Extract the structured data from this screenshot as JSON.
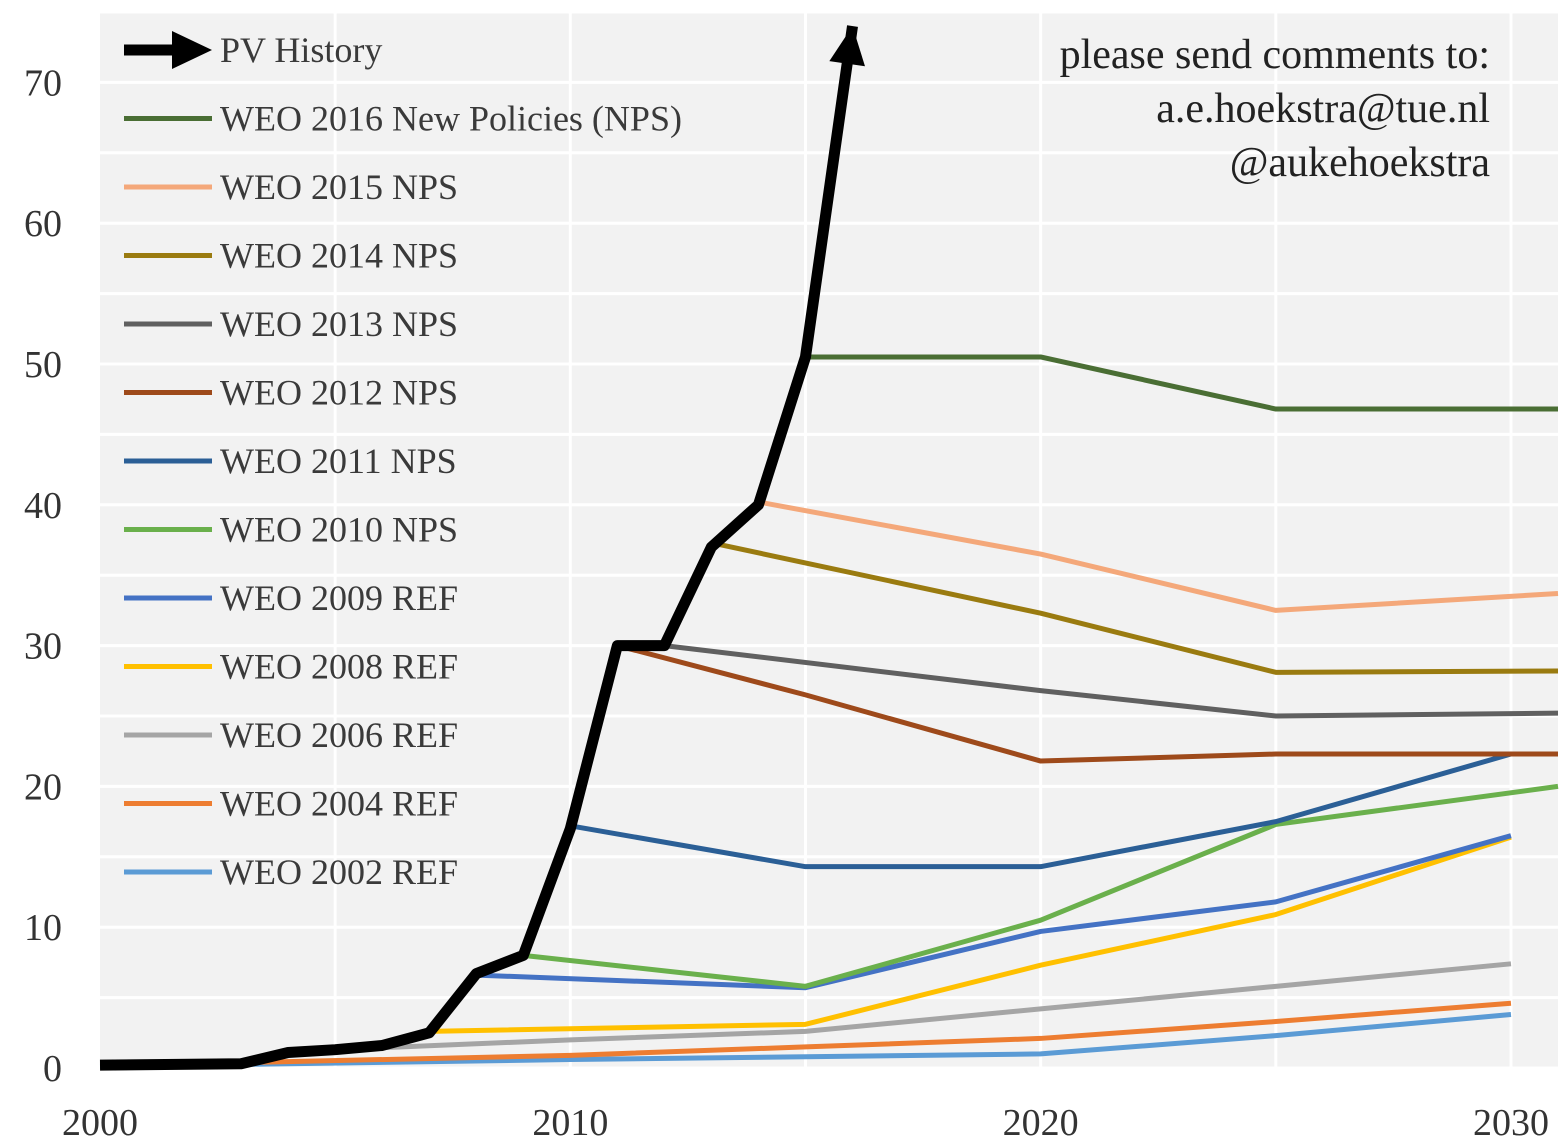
{
  "chart_data": {
    "type": "line",
    "xlim": [
      2000,
      2031
    ],
    "ylim": [
      0,
      75
    ],
    "x_ticks": [
      2000,
      2010,
      2020,
      2030
    ],
    "y_ticks": [
      0,
      10,
      20,
      30,
      40,
      50,
      60,
      70
    ],
    "grid": "on",
    "legend_position": "top-left",
    "annotation": [
      "please send comments to:",
      "a.e.hoekstra@tue.nl",
      "@aukehoekstra"
    ],
    "series": [
      {
        "name": "PV History",
        "color": "#000000",
        "arrow": true,
        "x": [
          2000,
          2003,
          2004,
          2005,
          2006,
          2007,
          2008,
          2009,
          2010,
          2011,
          2012,
          2013,
          2014,
          2015,
          2016
        ],
        "y": [
          0.2,
          0.3,
          1.1,
          1.3,
          1.6,
          2.5,
          6.7,
          8.0,
          17.0,
          30.0,
          30.0,
          37.0,
          40.0,
          50.5,
          74
        ]
      },
      {
        "name": "WEO 2016 New Policies (NPS)",
        "color": "#4a6e34",
        "x": [
          2015,
          2020,
          2025,
          2031
        ],
        "y": [
          50.5,
          50.5,
          46.8,
          46.8
        ]
      },
      {
        "name": "WEO 2015 NPS",
        "color": "#f4a87a",
        "x": [
          2014,
          2020,
          2025,
          2031
        ],
        "y": [
          40.2,
          36.5,
          32.5,
          33.7
        ]
      },
      {
        "name": "WEO 2014 NPS",
        "color": "#9a7b10",
        "x": [
          2013,
          2020,
          2025,
          2031
        ],
        "y": [
          37.3,
          32.3,
          28.1,
          28.2
        ]
      },
      {
        "name": "WEO 2013 NPS",
        "color": "#606060",
        "x": [
          2012,
          2020,
          2025,
          2031
        ],
        "y": [
          30.0,
          26.8,
          25.0,
          25.2
        ]
      },
      {
        "name": "WEO 2012 NPS",
        "color": "#9e4a1b",
        "x": [
          2011,
          2015,
          2020,
          2025,
          2031
        ],
        "y": [
          30.0,
          26.5,
          21.8,
          22.3,
          22.3
        ]
      },
      {
        "name": "WEO 2011 NPS",
        "color": "#2b5f96",
        "x": [
          2010,
          2015,
          2020,
          2025,
          2030,
          2031
        ],
        "y": [
          17.2,
          14.3,
          14.3,
          17.5,
          22.3,
          22.3
        ]
      },
      {
        "name": "WEO 2010 NPS",
        "color": "#6ab04c",
        "x": [
          2009,
          2015,
          2020,
          2025,
          2031
        ],
        "y": [
          8.0,
          5.8,
          10.5,
          17.3,
          20.0
        ]
      },
      {
        "name": "WEO 2009 REF",
        "color": "#4472c4",
        "x": [
          2008,
          2015,
          2020,
          2025,
          2030
        ],
        "y": [
          6.6,
          5.7,
          9.7,
          11.8,
          16.5
        ]
      },
      {
        "name": "WEO 2008 REF",
        "color": "#ffc000",
        "x": [
          2007,
          2015,
          2020,
          2025,
          2030
        ],
        "y": [
          2.6,
          3.1,
          7.3,
          10.9,
          16.4
        ]
      },
      {
        "name": "WEO 2006 REF",
        "color": "#a5a5a5",
        "x": [
          2005,
          2010,
          2015,
          2020,
          2025,
          2030
        ],
        "y": [
          1.3,
          2.0,
          2.6,
          4.2,
          5.8,
          7.4
        ]
      },
      {
        "name": "WEO 2004 REF",
        "color": "#ed7d31",
        "x": [
          2002,
          2010,
          2015,
          2020,
          2025,
          2030
        ],
        "y": [
          0.3,
          0.9,
          1.5,
          2.1,
          3.3,
          4.6
        ]
      },
      {
        "name": "WEO 2002 REF",
        "color": "#5b9bd5",
        "x": [
          2000,
          2010,
          2015,
          2020,
          2025,
          2030
        ],
        "y": [
          0.1,
          0.6,
          0.8,
          1.0,
          2.3,
          3.8
        ]
      }
    ]
  }
}
